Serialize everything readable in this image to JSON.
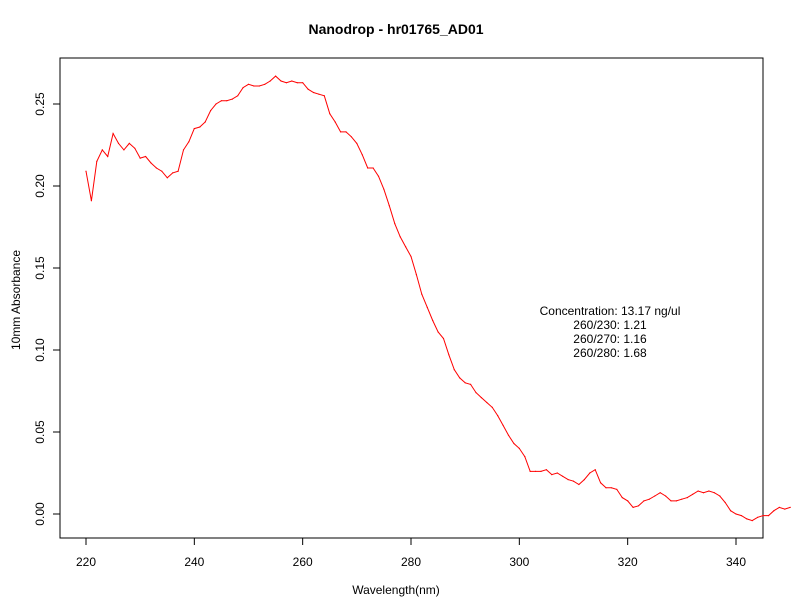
{
  "chart_data": {
    "type": "line",
    "title": "Nanodrop - hr01765_AD01",
    "xlabel": "Wavelength(nm)",
    "ylabel": "10mm Absorbance",
    "xlim": [
      220,
      350
    ],
    "ylim": [
      0.0,
      0.27
    ],
    "xticks": [
      "220",
      "240",
      "260",
      "280",
      "300",
      "320",
      "340"
    ],
    "yticks": [
      "0.00",
      "0.05",
      "0.10",
      "0.15",
      "0.20",
      "0.25"
    ],
    "grid": false,
    "color": "#ff0000",
    "annotations": [
      "Concentration: 13.17 ng/ul",
      "260/230: 1.21",
      "260/270: 1.16",
      "260/280: 1.68"
    ],
    "x": [
      220,
      221,
      222,
      223,
      224,
      225,
      226,
      227,
      228,
      229,
      230,
      231,
      232,
      233,
      234,
      235,
      236,
      237,
      238,
      239,
      240,
      241,
      242,
      243,
      244,
      245,
      246,
      247,
      248,
      249,
      250,
      251,
      252,
      253,
      254,
      255,
      256,
      257,
      258,
      259,
      260,
      261,
      262,
      263,
      264,
      265,
      266,
      267,
      268,
      269,
      270,
      271,
      272,
      273,
      274,
      275,
      276,
      277,
      278,
      279,
      280,
      281,
      282,
      283,
      284,
      285,
      286,
      287,
      288,
      289,
      290,
      291,
      292,
      293,
      294,
      295,
      296,
      297,
      298,
      299,
      300,
      301,
      302,
      303,
      304,
      305,
      306,
      307,
      308,
      309,
      310,
      311,
      312,
      313,
      314,
      315,
      316,
      317,
      318,
      319,
      320,
      321,
      322,
      323,
      324,
      325,
      326,
      327,
      328,
      329,
      330,
      331,
      332,
      333,
      334,
      335,
      336,
      337,
      338,
      339,
      340,
      341,
      342,
      343,
      344,
      345,
      346,
      347,
      348,
      349,
      350
    ],
    "y": [
      0.209,
      0.191,
      0.215,
      0.222,
      0.218,
      0.232,
      0.226,
      0.222,
      0.226,
      0.223,
      0.217,
      0.218,
      0.214,
      0.211,
      0.209,
      0.205,
      0.208,
      0.209,
      0.222,
      0.227,
      0.235,
      0.236,
      0.239,
      0.246,
      0.25,
      0.252,
      0.252,
      0.253,
      0.255,
      0.26,
      0.262,
      0.261,
      0.261,
      0.262,
      0.264,
      0.267,
      0.264,
      0.263,
      0.264,
      0.263,
      0.263,
      0.259,
      0.257,
      0.256,
      0.255,
      0.244,
      0.239,
      0.233,
      0.233,
      0.23,
      0.226,
      0.219,
      0.211,
      0.211,
      0.206,
      0.198,
      0.188,
      0.177,
      0.169,
      0.163,
      0.157,
      0.146,
      0.134,
      0.126,
      0.118,
      0.111,
      0.107,
      0.097,
      0.088,
      0.083,
      0.08,
      0.079,
      0.074,
      0.071,
      0.068,
      0.065,
      0.06,
      0.054,
      0.048,
      0.043,
      0.04,
      0.035,
      0.026,
      0.026,
      0.026,
      0.027,
      0.024,
      0.025,
      0.023,
      0.021,
      0.02,
      0.018,
      0.021,
      0.025,
      0.027,
      0.019,
      0.016,
      0.016,
      0.015,
      0.01,
      0.008,
      0.004,
      0.005,
      0.008,
      0.009,
      0.011,
      0.013,
      0.011,
      0.008,
      0.008,
      0.009,
      0.01,
      0.012,
      0.014,
      0.013,
      0.014,
      0.013,
      0.011,
      0.007,
      0.002,
      0.0,
      -0.001,
      -0.003,
      -0.004,
      -0.002,
      -0.001,
      -0.001,
      0.002,
      0.004,
      0.003,
      0.004
    ]
  }
}
